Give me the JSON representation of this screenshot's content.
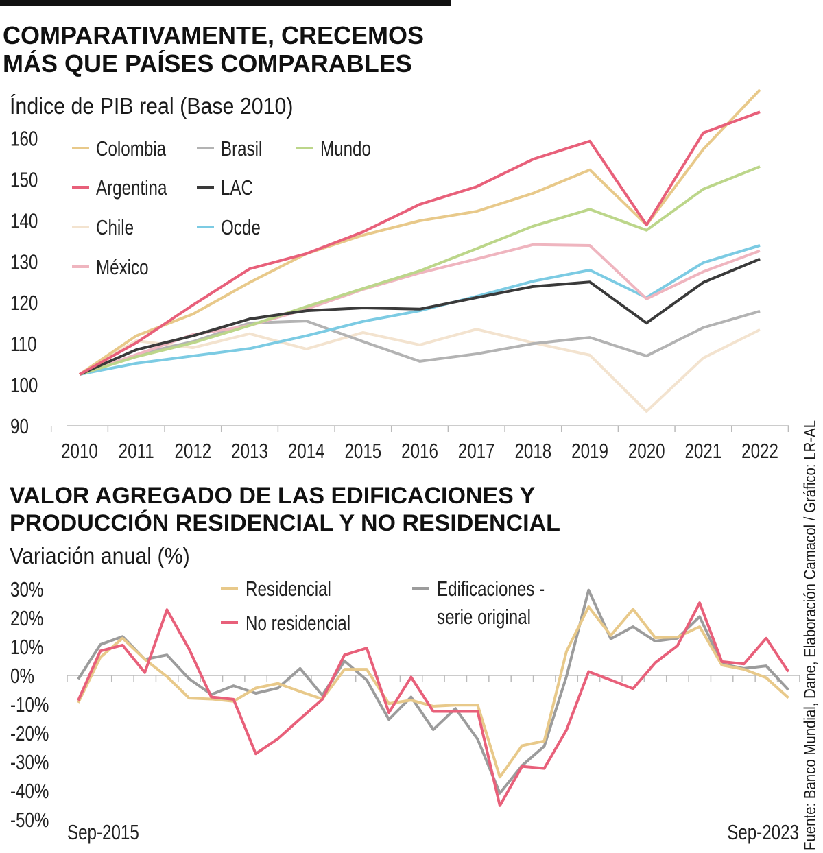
{
  "chart_data": [
    {
      "type": "line",
      "title": "COMPARATIVAMENTE, CRECEMOS MÁS QUE PAÍSES COMPARABLES",
      "subtitle": "Índice de PIB real (Base 2010)",
      "xlabel": "",
      "ylabel": "",
      "x": [
        "2010",
        "2011",
        "2012",
        "2013",
        "2014",
        "2015",
        "2016",
        "2017",
        "2018",
        "2019",
        "2020",
        "2021",
        "2022"
      ],
      "ylim": [
        90,
        160
      ],
      "yticks": [
        "90",
        "100",
        "110",
        "120",
        "130",
        "140",
        "150",
        "160"
      ],
      "grid": false,
      "legend_position": "top-left",
      "series": [
        {
          "name": "Colombia",
          "color": "#e8c98a",
          "values": [
            102.5,
            111.9,
            117.2,
            124.9,
            131.9,
            136.4,
            139.9,
            142.2,
            146.6,
            152.3,
            138.9,
            157.3,
            171.8
          ]
        },
        {
          "name": "Brasil",
          "color": "#b3b3b3",
          "values": [
            102.5,
            107.3,
            110.5,
            115.0,
            115.5,
            110.5,
            105.7,
            107.5,
            110.0,
            111.5,
            107.0,
            113.9,
            117.9
          ]
        },
        {
          "name": "Mundo",
          "color": "#bcd68a",
          "values": [
            102.5,
            106.8,
            110.2,
            114.4,
            119.0,
            123.4,
            127.7,
            133.1,
            138.6,
            142.7,
            137.6,
            147.6,
            153.1
          ]
        },
        {
          "name": "Argentina",
          "color": "#e8607a",
          "values": [
            102.5,
            110.2,
            119.4,
            128.2,
            131.9,
            137.2,
            143.9,
            148.2,
            154.9,
            159.3,
            138.9,
            161.3,
            166.4
          ]
        },
        {
          "name": "LAC",
          "color": "#3a3a3a",
          "values": [
            102.5,
            108.5,
            111.9,
            116.0,
            118.0,
            118.7,
            118.4,
            121.2,
            123.9,
            125.0,
            115.0,
            124.9,
            130.6
          ]
        },
        {
          "name": "Chile",
          "color": "#f3e3cf",
          "values": [
            102.5,
            110.7,
            109.0,
            112.4,
            108.7,
            112.7,
            109.7,
            113.5,
            110.2,
            107.2,
            93.5,
            106.5,
            113.4
          ]
        },
        {
          "name": "Ocde",
          "color": "#7ccbe3",
          "values": [
            102.5,
            105.2,
            107.0,
            108.8,
            111.9,
            115.4,
            118.0,
            121.5,
            125.2,
            127.9,
            121.2,
            129.7,
            133.9
          ]
        },
        {
          "name": "México",
          "color": "#efb5bf",
          "values": [
            102.5,
            107.3,
            112.2,
            114.4,
            118.4,
            123.2,
            127.2,
            130.6,
            134.1,
            133.9,
            120.9,
            127.5,
            132.6
          ]
        }
      ]
    },
    {
      "type": "line",
      "title": "VALOR AGREGADO DE LAS EDIFICACIONES Y PRODUCCIÓN RESIDENCIAL Y NO RESIDENCIAL",
      "subtitle": "Variación anual (%)",
      "xlabel": "",
      "ylabel": "",
      "x_first_label": "Sep-2015",
      "x_last_label": "Sep-2023",
      "ylim": [
        -50,
        30
      ],
      "yticks": [
        "30%",
        "20%",
        "10%",
        "0%",
        "-10%",
        "-20%",
        "-30%",
        "-40%",
        "-50%"
      ],
      "grid": false,
      "legend_position": "top-center",
      "series": [
        {
          "name": "Residencial",
          "color": "#e8c98a",
          "values": [
            -9.5,
            6.3,
            12.9,
            5.6,
            -0.4,
            -7.9,
            -8.2,
            -9.0,
            -4.4,
            -2.8,
            -5.6,
            -8.2,
            2.1,
            2.1,
            -9.8,
            -8.6,
            -10.7,
            -10.3,
            -10.3,
            -35.3,
            -24.4,
            -22.8,
            8.3,
            23.8,
            13.9,
            23.0,
            13.1,
            13.3,
            16.9,
            3.6,
            2.1,
            -0.8,
            -7.8
          ]
        },
        {
          "name": "No residencial",
          "color": "#e8607a",
          "values": [
            -8.7,
            8.5,
            10.5,
            1.0,
            22.8,
            9.1,
            -7.5,
            -8.3,
            -27.2,
            -22.0,
            -15.1,
            -8.3,
            7.1,
            9.5,
            -12.9,
            -0.6,
            -12.5,
            -12.5,
            -12.5,
            -45.2,
            -31.6,
            -32.3,
            -19.0,
            1.3,
            -1.6,
            -4.6,
            4.4,
            10.3,
            25.2,
            4.8,
            4.0,
            12.9,
            1.3
          ]
        },
        {
          "name": "Edificaciones - serie original",
          "name_line1": "Edificaciones -",
          "name_line2": "serie original",
          "color": "#9c9c9c",
          "values": [
            -1.3,
            10.7,
            13.5,
            5.6,
            7.1,
            -1.2,
            -6.6,
            -3.6,
            -6.2,
            -4.4,
            2.4,
            -6.9,
            5.0,
            -1.6,
            -15.3,
            -7.5,
            -18.8,
            -11.5,
            -22.2,
            -40.9,
            -31.3,
            -24.6,
            -0.4,
            29.6,
            12.7,
            16.9,
            11.9,
            12.9,
            20.4,
            4.0,
            2.4,
            3.3,
            -5.0
          ]
        }
      ]
    }
  ],
  "source": "Fuente: Banco Mundial, Dane, Elaboración Camacol / Gráfico: LR-AL"
}
